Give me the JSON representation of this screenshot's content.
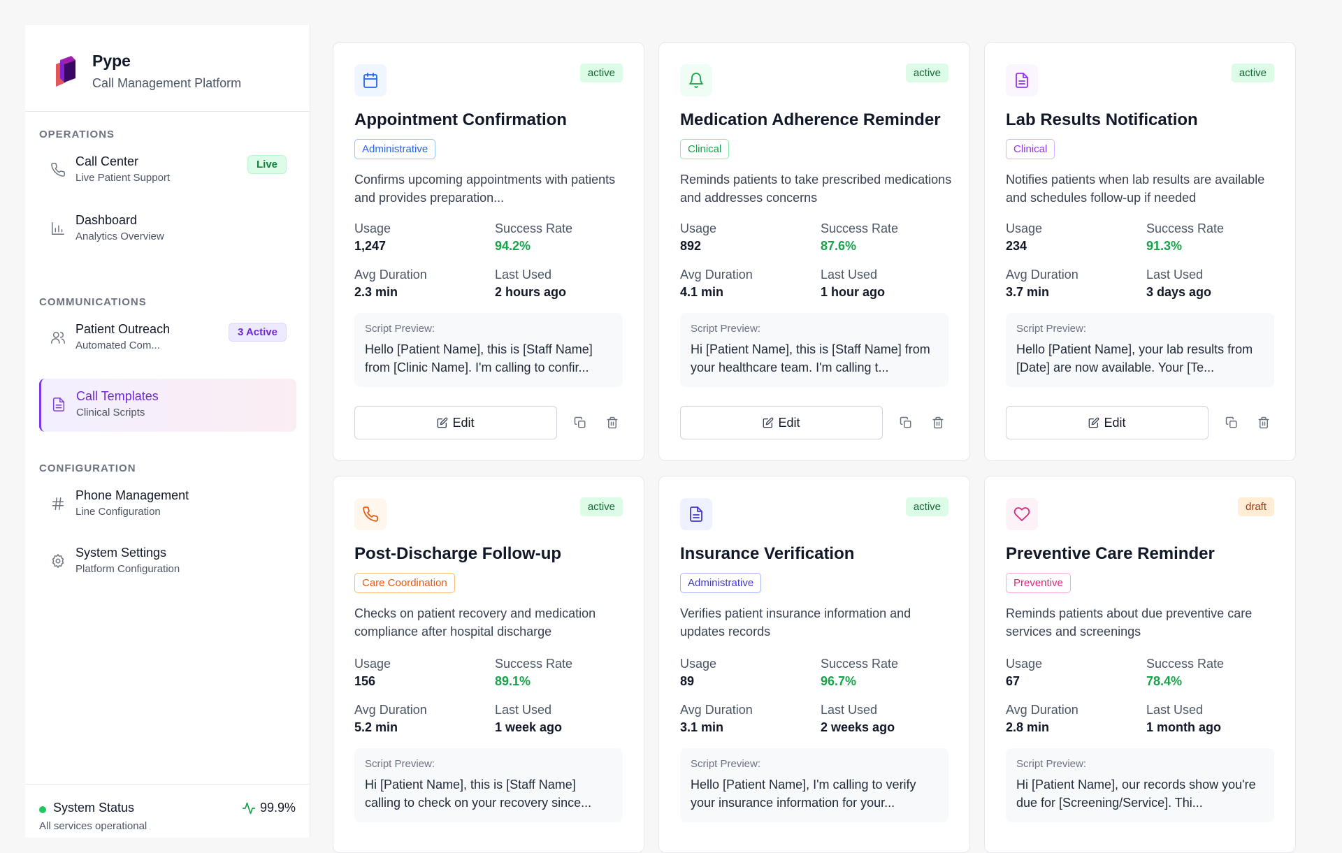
{
  "brand": {
    "name": "Pype",
    "subtitle": "Call Management Platform"
  },
  "sidebar": {
    "sections": [
      {
        "title": "OPERATIONS"
      },
      {
        "title": "COMMUNICATIONS"
      },
      {
        "title": "CONFIGURATION"
      }
    ],
    "items": [
      {
        "title": "Call Center",
        "subtitle": "Live Patient Support",
        "badge": "Live",
        "icon": "phone-icon"
      },
      {
        "title": "Dashboard",
        "subtitle": "Analytics Overview",
        "icon": "bar-chart-icon"
      },
      {
        "title": "Patient Outreach",
        "subtitle": "Automated Com...",
        "badge": "3 Active",
        "icon": "users-icon"
      },
      {
        "title": "Call Templates",
        "subtitle": "Clinical Scripts",
        "icon": "document-icon",
        "active": true
      },
      {
        "title": "Phone Management",
        "subtitle": "Line Configuration",
        "icon": "hash-icon"
      },
      {
        "title": "System Settings",
        "subtitle": "Platform Configuration",
        "icon": "gear-icon"
      }
    ],
    "status": {
      "title": "System Status",
      "subtitle": "All services operational",
      "value": "99.9%"
    }
  },
  "labels": {
    "usage": "Usage",
    "success_rate": "Success Rate",
    "avg_duration": "Avg Duration",
    "last_used": "Last Used",
    "script_preview": "Script Preview:",
    "edit": "Edit"
  },
  "colors": {
    "accent": "#7c3aed",
    "success": "#16a34a"
  },
  "templates": [
    {
      "title": "Appointment Confirmation",
      "status": "active",
      "category": "Administrative",
      "description": "Confirms upcoming appointments with patients and provides preparation...",
      "usage": "1,247",
      "success_rate": "94.2%",
      "avg_duration": "2.3 min",
      "last_used": "2 hours ago",
      "preview": "Hello [Patient Name], this is [Staff Name] from [Clinic Name]. I'm calling to confir...",
      "icon": "calendar-icon"
    },
    {
      "title": "Medication Adherence Reminder",
      "status": "active",
      "category": "Clinical",
      "description": "Reminds patients to take prescribed medications and addresses concerns",
      "usage": "892",
      "success_rate": "87.6%",
      "avg_duration": "4.1 min",
      "last_used": "1 hour ago",
      "preview": "Hi [Patient Name], this is [Staff Name] from your healthcare team. I'm calling t...",
      "icon": "bell-icon"
    },
    {
      "title": "Lab Results Notification",
      "status": "active",
      "category": "Clinical",
      "description": "Notifies patients when lab results are available and schedules follow-up if needed",
      "usage": "234",
      "success_rate": "91.3%",
      "avg_duration": "3.7 min",
      "last_used": "3 days ago",
      "preview": "Hello [Patient Name], your lab results from [Date] are now available. Your [Te...",
      "icon": "document-icon"
    },
    {
      "title": "Post-Discharge Follow-up",
      "status": "active",
      "category": "Care Coordination",
      "description": "Checks on patient recovery and medication compliance after hospital discharge",
      "usage": "156",
      "success_rate": "89.1%",
      "avg_duration": "5.2 min",
      "last_used": "1 week ago",
      "preview": "Hi [Patient Name], this is [Staff Name] calling to check on your recovery since...",
      "icon": "phone-icon"
    },
    {
      "title": "Insurance Verification",
      "status": "active",
      "category": "Administrative",
      "description": "Verifies patient insurance information and updates records",
      "usage": "89",
      "success_rate": "96.7%",
      "avg_duration": "3.1 min",
      "last_used": "2 weeks ago",
      "preview": "Hello [Patient Name], I'm calling to verify your insurance information for your...",
      "icon": "document-icon"
    },
    {
      "title": "Preventive Care Reminder",
      "status": "draft",
      "category": "Preventive",
      "description": "Reminds patients about due preventive care services and screenings",
      "usage": "67",
      "success_rate": "78.4%",
      "avg_duration": "2.8 min",
      "last_used": "1 month ago",
      "preview": "Hi [Patient Name], our records show you're due for [Screening/Service]. Thi...",
      "icon": "heart-icon"
    }
  ]
}
